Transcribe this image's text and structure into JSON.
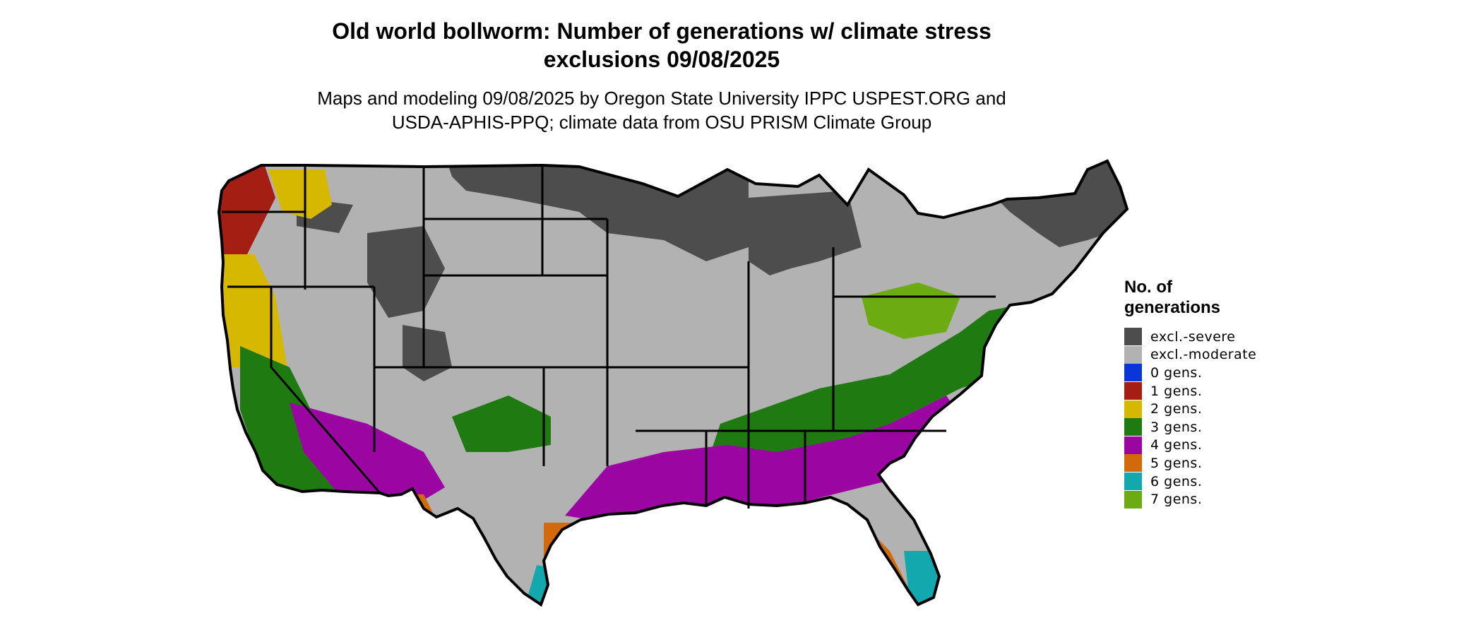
{
  "title_line1": "Old world bollworm: Number of generations w/ climate stress",
  "title_line2": "exclusions 09/08/2025",
  "subtitle_line1": "Maps and modeling 09/08/2025 by Oregon State University IPPC USPEST.ORG and",
  "subtitle_line2": "USDA-APHIS-PPQ; climate data from OSU PRISM Climate Group",
  "legend": {
    "title_line1": "No. of",
    "title_line2": "generations",
    "items": [
      {
        "label": "excl.-severe",
        "color": "#4d4d4d"
      },
      {
        "label": "excl.-moderate",
        "color": "#b2b2b2"
      },
      {
        "label": "0 gens.",
        "color": "#0a35d8"
      },
      {
        "label": "1 gens.",
        "color": "#a51e14"
      },
      {
        "label": "2 gens.",
        "color": "#d6b800"
      },
      {
        "label": "3 gens.",
        "color": "#1f7a12"
      },
      {
        "label": "4 gens.",
        "color": "#9b06a3"
      },
      {
        "label": "5 gens.",
        "color": "#d2690a"
      },
      {
        "label": "6 gens.",
        "color": "#12a8ae"
      },
      {
        "label": "7 gens.",
        "color": "#6cab12"
      }
    ]
  }
}
